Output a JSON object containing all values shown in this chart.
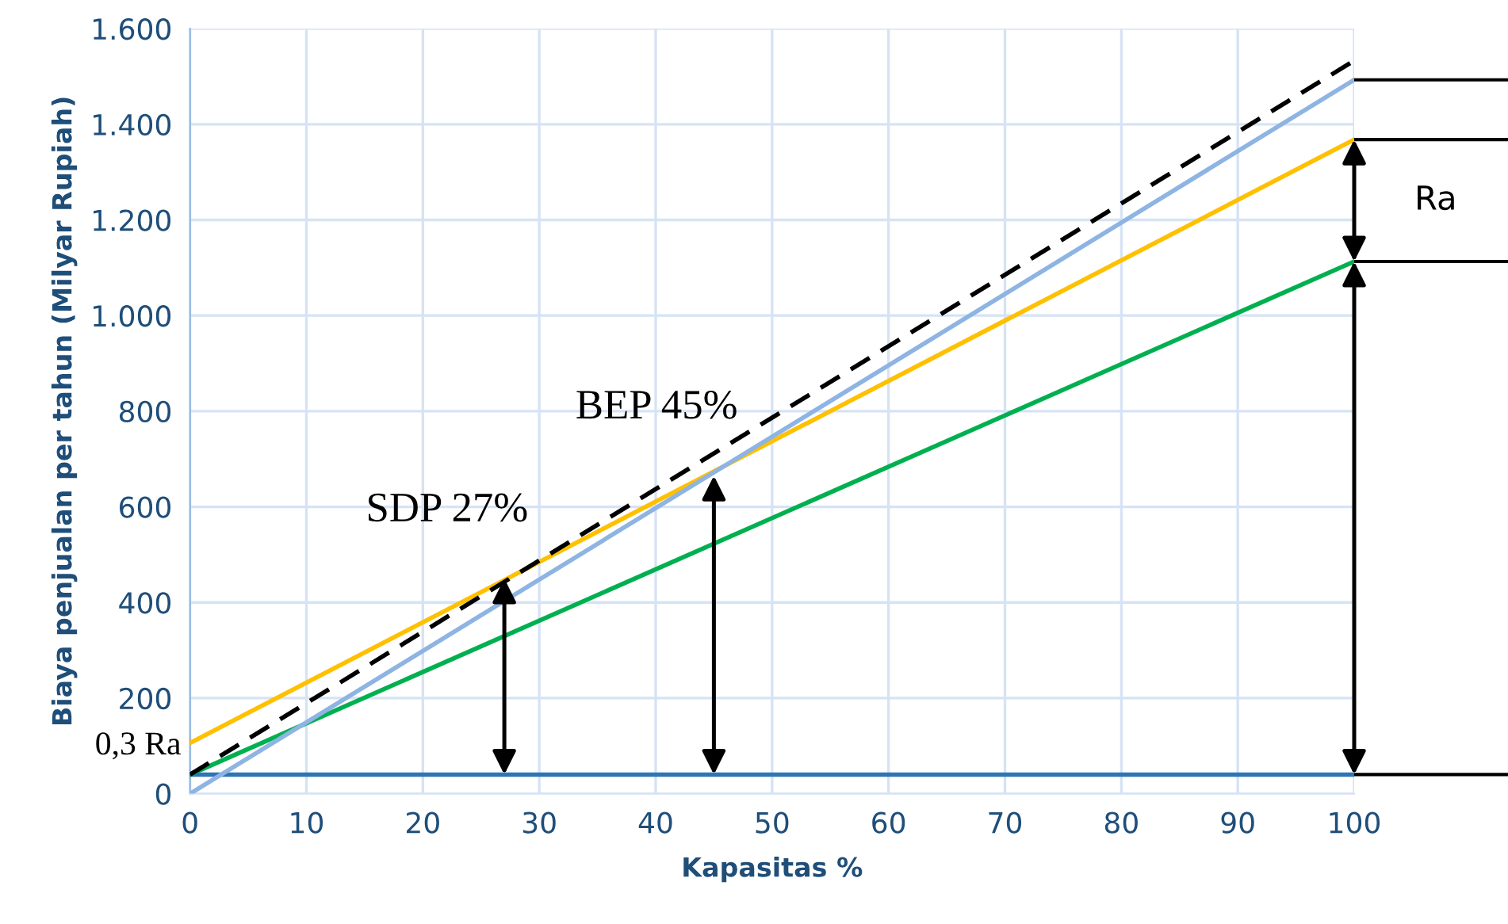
{
  "chart_data": {
    "type": "line",
    "xlabel": "Kapasitas %",
    "ylabel": "Biaya penjualan per tahun (Milyar Rupiah)",
    "x": [
      0,
      100
    ],
    "series": [
      {
        "color": "#2e75b6",
        "values": [
          40,
          40
        ]
      },
      {
        "color": "#00b050",
        "values": [
          40,
          1113
        ]
      },
      {
        "color": "#ffc000",
        "values": [
          106,
          1368
        ]
      },
      {
        "color": "#8eb4e3",
        "values": [
          0,
          1493
        ]
      },
      {
        "color": "#000000",
        "values": [
          40,
          1533
        ],
        "line_style": "dashed"
      }
    ],
    "xlim": [
      0,
      100
    ],
    "xticks": [
      0,
      10,
      20,
      30,
      40,
      50,
      60,
      70,
      80,
      90,
      100
    ],
    "ylim": [
      0,
      1600
    ],
    "yticks": [
      0,
      200,
      400,
      600,
      800,
      {
        "value": 1000,
        "label": "1.000"
      },
      {
        "value": 1200,
        "label": "1.200"
      },
      {
        "value": 1400,
        "label": "1.400"
      },
      {
        "value": 1600,
        "label": "1.600"
      }
    ],
    "grid": true,
    "marker": "none",
    "line_style": "solid",
    "annotations": [
      {
        "text": "SDP 27%",
        "x": 27,
        "y": 450
      },
      {
        "text": "BEP 45%",
        "x": 45,
        "y": 665
      },
      "Ra",
      "0,3 Ra"
    ]
  }
}
